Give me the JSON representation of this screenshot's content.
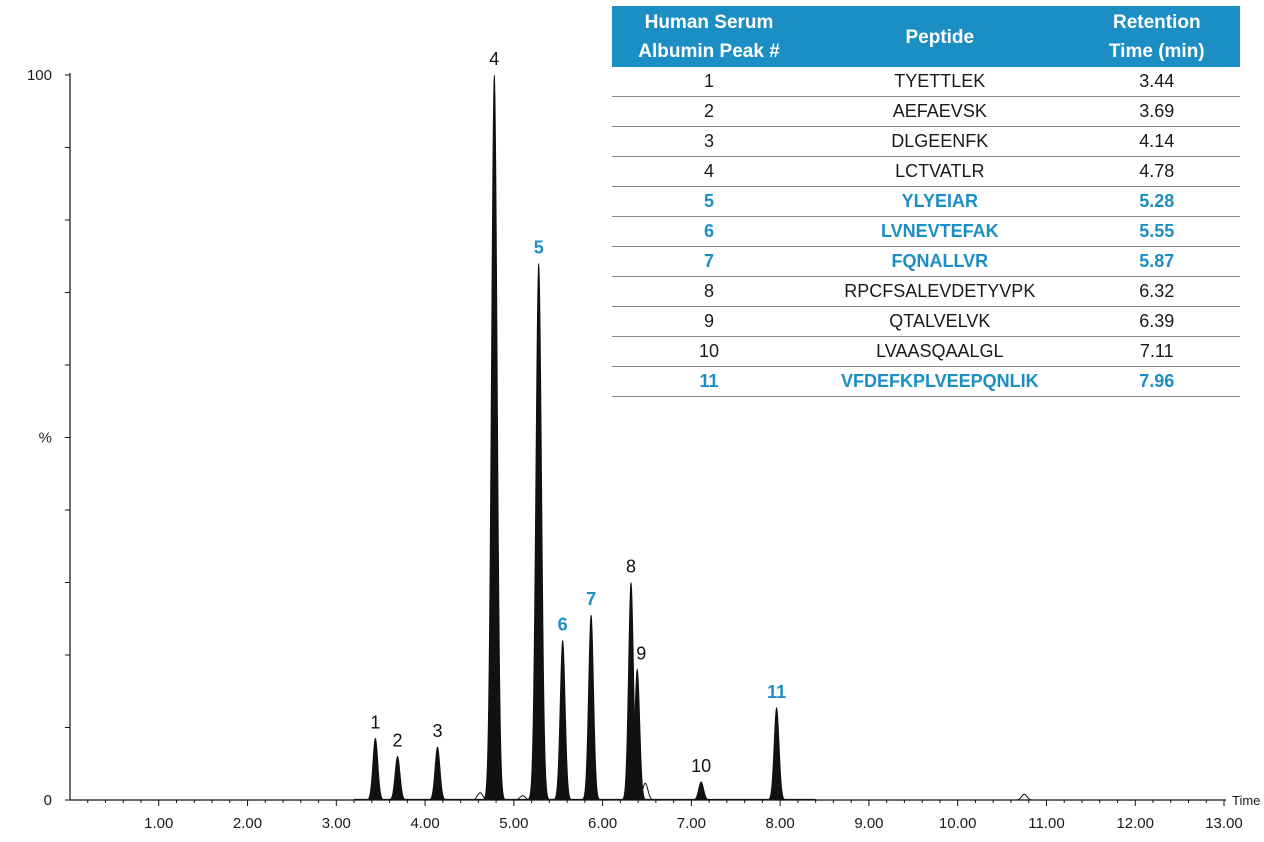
{
  "colors": {
    "accent": "#1b8ec4",
    "trace": "#111111",
    "text": "#1a1a1a"
  },
  "table": {
    "headers": {
      "peak": [
        "Human Serum",
        "Albumin Peak #"
      ],
      "peptide": "Peptide",
      "rt": [
        "Retention",
        "Time (min)"
      ]
    },
    "rows": [
      {
        "peak": "1",
        "peptide": "TYETTLEK",
        "rt": "3.44",
        "highlight": false
      },
      {
        "peak": "2",
        "peptide": "AEFAEVSK",
        "rt": "3.69",
        "highlight": false
      },
      {
        "peak": "3",
        "peptide": "DLGEENFK",
        "rt": "4.14",
        "highlight": false
      },
      {
        "peak": "4",
        "peptide": "LCTVATLR",
        "rt": "4.78",
        "highlight": false
      },
      {
        "peak": "5",
        "peptide": "YLYEIAR",
        "rt": "5.28",
        "highlight": true
      },
      {
        "peak": "6",
        "peptide": "LVNEVTEFAK",
        "rt": "5.55",
        "highlight": true
      },
      {
        "peak": "7",
        "peptide": "FQNALLVR",
        "rt": "5.87",
        "highlight": true
      },
      {
        "peak": "8",
        "peptide": "RPCFSALEVDETYVPK",
        "rt": "6.32",
        "highlight": false
      },
      {
        "peak": "9",
        "peptide": "QTALVELVK",
        "rt": "6.39",
        "highlight": false
      },
      {
        "peak": "10",
        "peptide": "LVAASQAALGL",
        "rt": "7.11",
        "highlight": false
      },
      {
        "peak": "11",
        "peptide": "VFDEFKPLVEEPQNLIK",
        "rt": "7.96",
        "highlight": true
      }
    ]
  },
  "chart_data": {
    "type": "line",
    "xlabel": "Time",
    "ylabel": "%",
    "xlim": [
      0,
      13.0
    ],
    "ylim": [
      0,
      100
    ],
    "x_ticks": [
      "1.00",
      "2.00",
      "3.00",
      "4.00",
      "5.00",
      "6.00",
      "7.00",
      "8.00",
      "9.00",
      "10.00",
      "11.00",
      "12.00",
      "13.00"
    ],
    "x_tick_values": [
      1,
      2,
      3,
      4,
      5,
      6,
      7,
      8,
      9,
      10,
      11,
      12,
      13
    ],
    "y_ticks": [
      "0",
      "%",
      "100"
    ],
    "y_tick_values": [
      0,
      50,
      100
    ],
    "grid": false,
    "peaks": [
      {
        "label": "1",
        "x": 3.44,
        "y": 8.5,
        "highlight": false
      },
      {
        "label": "2",
        "x": 3.69,
        "y": 6.0,
        "highlight": false
      },
      {
        "label": "3",
        "x": 4.14,
        "y": 7.3,
        "highlight": false
      },
      {
        "label": "4",
        "x": 4.78,
        "y": 100,
        "highlight": false
      },
      {
        "label": "5",
        "x": 5.28,
        "y": 74,
        "highlight": true
      },
      {
        "label": "6",
        "x": 5.55,
        "y": 22,
        "highlight": true
      },
      {
        "label": "7",
        "x": 5.87,
        "y": 25.5,
        "highlight": true
      },
      {
        "label": "8",
        "x": 6.32,
        "y": 30,
        "highlight": false
      },
      {
        "label": "9",
        "x": 6.39,
        "y": 18,
        "highlight": false
      },
      {
        "label": "10",
        "x": 7.11,
        "y": 2.5,
        "highlight": false
      },
      {
        "label": "11",
        "x": 7.96,
        "y": 12.7,
        "highlight": true
      }
    ],
    "minor_features": [
      {
        "x": 4.62,
        "y": 1.0
      },
      {
        "x": 5.1,
        "y": 0.6
      },
      {
        "x": 6.48,
        "y": 2.3
      },
      {
        "x": 10.75,
        "y": 0.8
      }
    ]
  }
}
